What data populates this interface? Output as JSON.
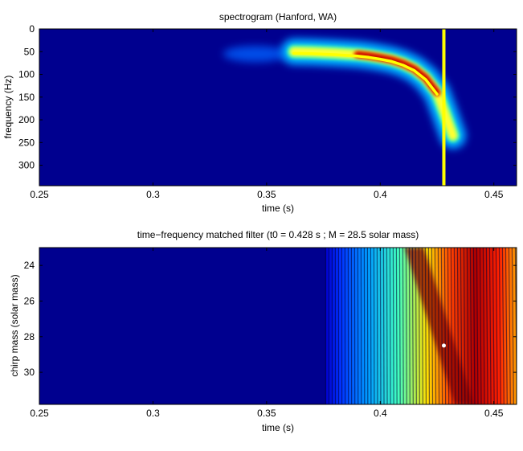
{
  "chart_data": [
    {
      "type": "heatmap",
      "title": "spectrogram (Hanford, WA)",
      "xlabel": "time (s)",
      "ylabel": "frequency (Hz)",
      "xlim": [
        0.25,
        0.46
      ],
      "ylim": [
        0,
        345
      ],
      "y_reversed": true,
      "colormap": "jet",
      "xticks": [
        0.25,
        0.3,
        0.35,
        0.4,
        0.45
      ],
      "xtick_labels": [
        "0.25",
        "0.3",
        "0.35",
        "0.4",
        "0.45"
      ],
      "yticks": [
        0,
        50,
        100,
        150,
        200,
        250,
        300
      ],
      "ytick_labels": [
        "0",
        "50",
        "100",
        "150",
        "200",
        "250",
        "300"
      ],
      "chirp_track": {
        "t": [
          0.362,
          0.37,
          0.38,
          0.39,
          0.395,
          0.4,
          0.405,
          0.41,
          0.415,
          0.42,
          0.425,
          0.428,
          0.432
        ],
        "f": [
          50,
          51,
          53,
          56,
          59,
          63,
          68,
          76,
          88,
          108,
          140,
          180,
          235
        ]
      },
      "marker_line": {
        "t": 0.428,
        "color": "#ffff00"
      }
    },
    {
      "type": "heatmap",
      "title": "time−frequency matched filter (t0 = 0.428 s ; M = 28.5 solar mass)",
      "xlabel": "time (s)",
      "ylabel": "chirp mass (solar mass)",
      "xlim": [
        0.25,
        0.46
      ],
      "ylim": [
        23,
        31.8
      ],
      "y_reversed": true,
      "colormap": "jet",
      "xticks": [
        0.25,
        0.3,
        0.35,
        0.4,
        0.45
      ],
      "xtick_labels": [
        "0.25",
        "0.3",
        "0.35",
        "0.4",
        "0.45"
      ],
      "yticks": [
        24,
        26,
        28,
        30
      ],
      "ytick_labels": [
        "24",
        "26",
        "28",
        "30"
      ],
      "signal_onset_t": 0.376,
      "ridge": {
        "t_at_top": 0.415,
        "t_at_bottom": 0.437
      },
      "peak": {
        "t0": 0.428,
        "M": 28.5
      }
    }
  ]
}
